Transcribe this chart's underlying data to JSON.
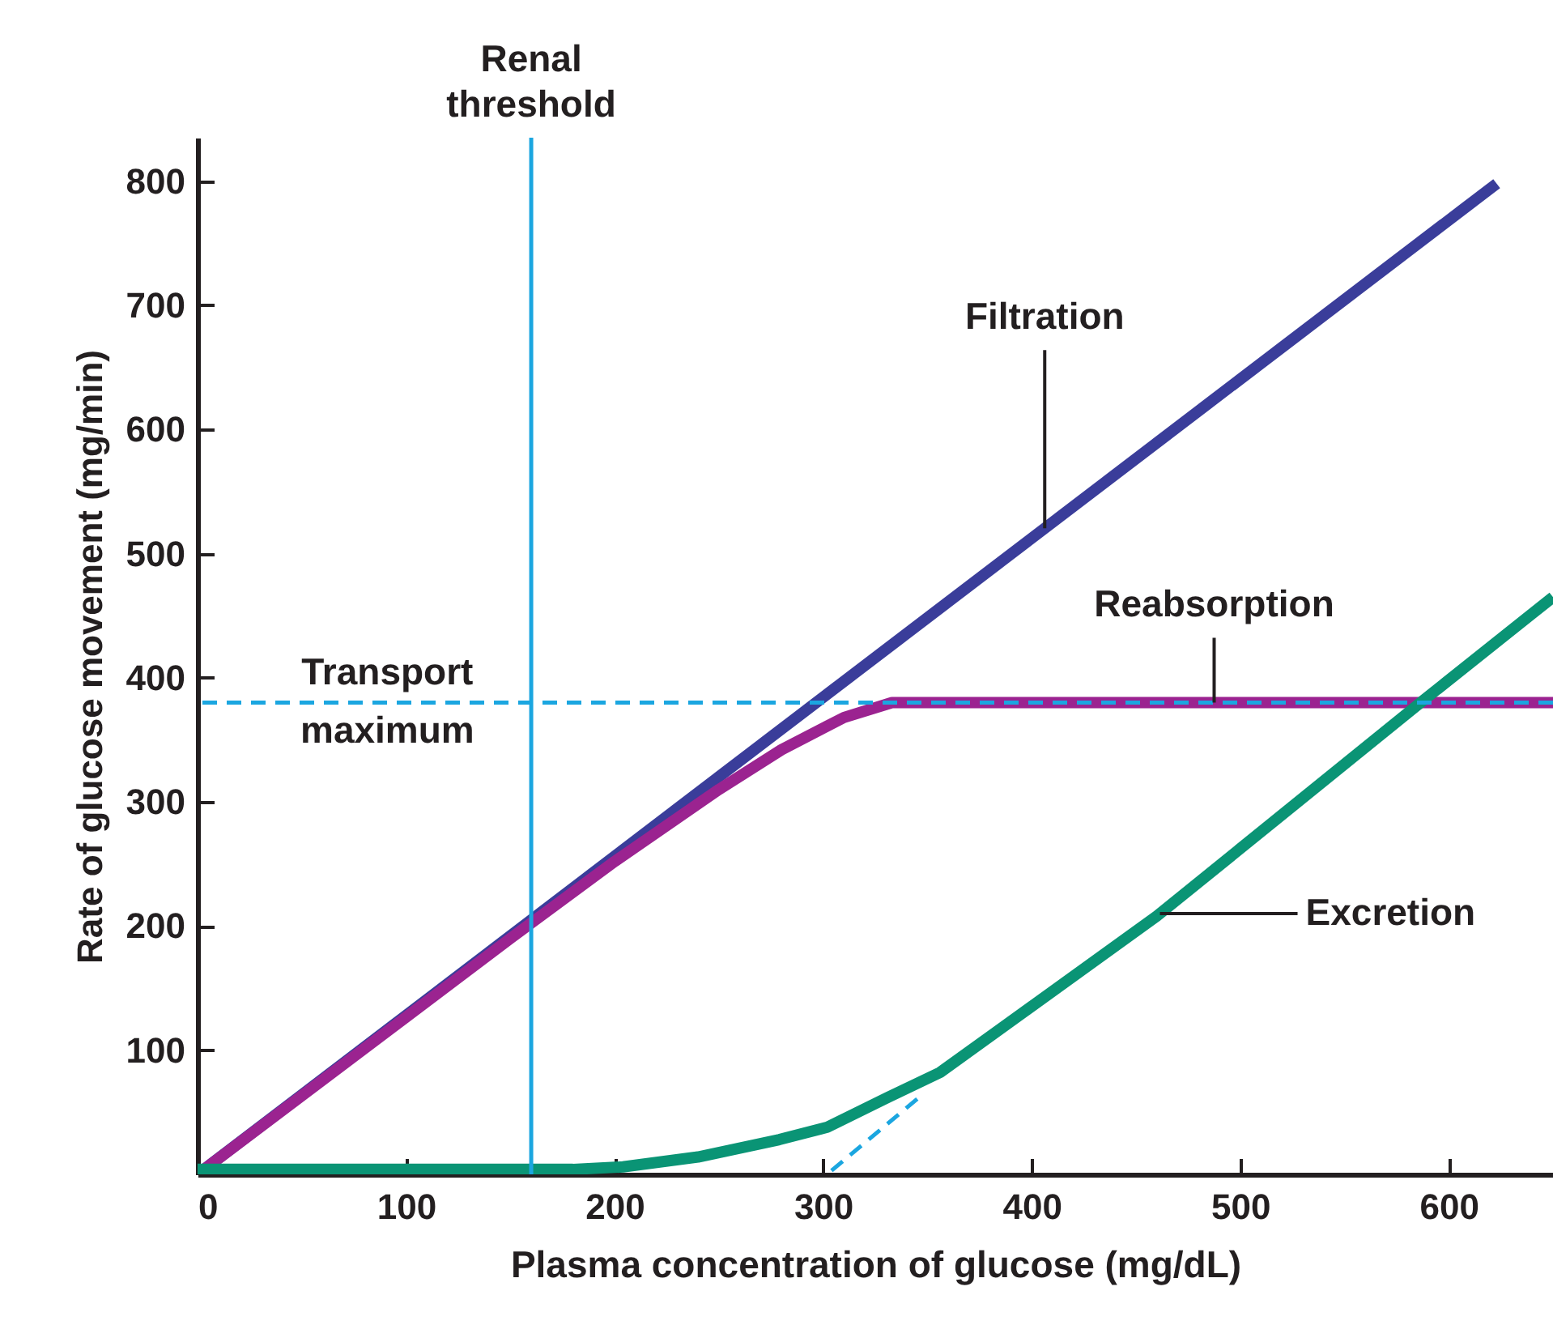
{
  "chart_data": {
    "type": "line",
    "xlabel": "Plasma concentration of glucose (mg/dL)",
    "ylabel": "Rate of glucose movement (mg/min)",
    "xlim": [
      0,
      650
    ],
    "ylim": [
      0,
      835
    ],
    "xticks": [
      0,
      100,
      200,
      300,
      400,
      500,
      600
    ],
    "yticks": [
      100,
      200,
      300,
      400,
      500,
      600,
      700,
      800
    ],
    "series": [
      {
        "name": "Filtration",
        "color": "#3a3d9a",
        "x": [
          0,
          623
        ],
        "values": [
          0,
          798
        ]
      },
      {
        "name": "Reabsorption",
        "color": "#9b2390",
        "x": [
          0,
          150,
          200,
          250,
          280,
          310,
          333,
          650
        ],
        "values": [
          0,
          190,
          252,
          310,
          342,
          368,
          380,
          380
        ]
      },
      {
        "name": "Excretion",
        "color": "#0a9475",
        "x": [
          0,
          180,
          204,
          240,
          279,
          302,
          331,
          356,
          460,
          588,
          650
        ],
        "values": [
          4,
          4,
          6,
          14,
          28,
          38,
          62,
          82,
          208,
          382,
          465
        ]
      },
      {
        "color": "#1ba6e0",
        "line_style": "dashed",
        "x": [
          304,
          346
        ],
        "values": [
          3,
          62
        ]
      }
    ],
    "ref_lines": [
      {
        "axis": "x",
        "value": 160,
        "label": "Renal threshold",
        "color": "#1ba6e0"
      },
      {
        "axis": "y",
        "value": 380,
        "label": "Transport maximum",
        "color": "#1ba6e0",
        "line_style": "dashed"
      }
    ]
  }
}
